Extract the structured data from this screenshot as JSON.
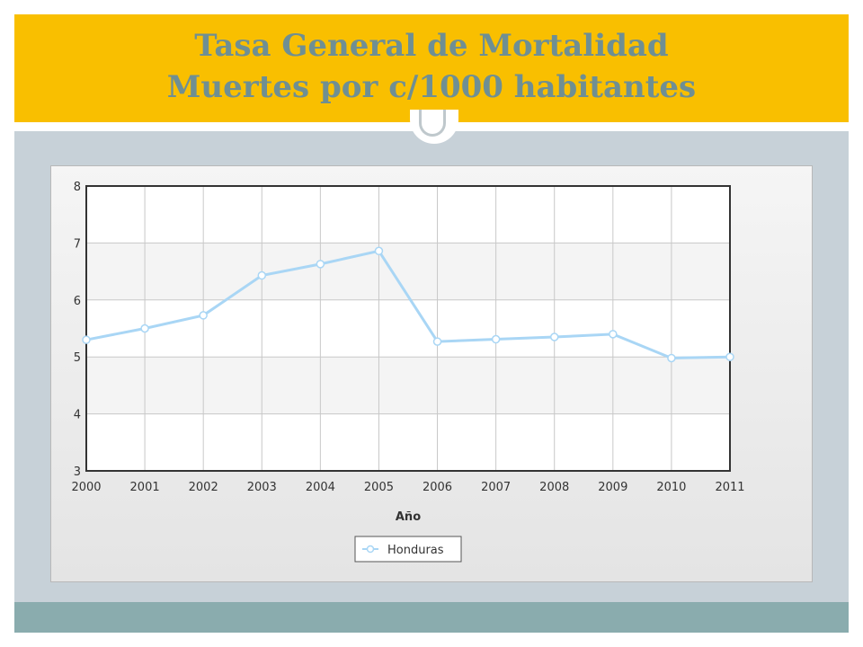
{
  "slide": {
    "title_line1": "Tasa General de Mortalidad",
    "title_line2": "Muertes por c/1000 habitantes",
    "colors": {
      "title_bar": "#f9bf00",
      "title_text": "#6f8f93",
      "background": "#c7d1d8",
      "bottom_band": "#8aacae"
    }
  },
  "chart_data": {
    "type": "line",
    "title": "",
    "xlabel": "Año",
    "ylabel": "",
    "x": [
      2000,
      2001,
      2002,
      2003,
      2004,
      2005,
      2006,
      2007,
      2008,
      2009,
      2010,
      2011
    ],
    "x_tick_labels": [
      "2000",
      "2001",
      "2002",
      "2003",
      "2004",
      "2005",
      "2006",
      "2007",
      "2008",
      "2009",
      "2010",
      "2011"
    ],
    "ylim": [
      3,
      8
    ],
    "y_ticks": [
      3,
      4,
      5,
      6,
      7,
      8
    ],
    "y_tick_labels": [
      "3",
      "4",
      "5",
      "6",
      "7",
      "8"
    ],
    "grid": true,
    "legend_position": "bottom-center",
    "series": [
      {
        "name": "Honduras",
        "color": "#a9d6f5",
        "marker": "circle",
        "values": [
          5.3,
          5.5,
          5.73,
          6.43,
          6.63,
          6.86,
          5.27,
          5.31,
          5.35,
          5.4,
          4.98,
          5.0
        ]
      }
    ]
  }
}
